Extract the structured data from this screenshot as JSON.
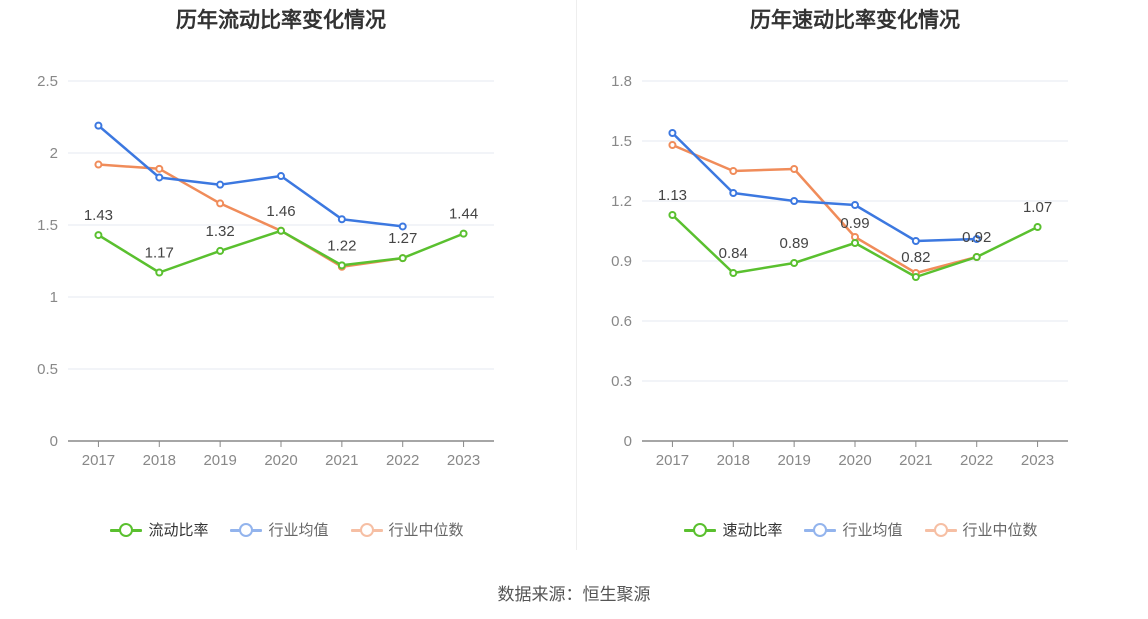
{
  "source_note": "数据来源：恒生聚源",
  "chart_data": [
    {
      "type": "line",
      "title": "历年流动比率变化情况",
      "categories": [
        "2017",
        "2018",
        "2019",
        "2020",
        "2021",
        "2022",
        "2023"
      ],
      "ylim": [
        0,
        2.5
      ],
      "yticks": [
        "0",
        "0.5",
        "1",
        "1.5",
        "2",
        "2.5"
      ],
      "ytick_values": [
        0,
        0.5,
        1,
        1.5,
        2,
        2.5
      ],
      "grid": true,
      "legend_position": "bottom",
      "series": [
        {
          "name": "流动比率",
          "color": "#5ac02f",
          "values": [
            1.43,
            1.17,
            1.32,
            1.46,
            1.22,
            1.27,
            1.44
          ],
          "labels": [
            "1.43",
            "1.17",
            "1.32",
            "1.46",
            "1.22",
            "1.27",
            "1.44"
          ]
        },
        {
          "name": "行业均值",
          "color": "#3c78e0",
          "values": [
            2.19,
            1.83,
            1.78,
            1.84,
            1.54,
            1.49,
            null
          ]
        },
        {
          "name": "行业中位数",
          "color": "#f08c5a",
          "values": [
            1.92,
            1.89,
            1.65,
            1.46,
            1.21,
            1.27,
            null
          ]
        }
      ]
    },
    {
      "type": "line",
      "title": "历年速动比率变化情况",
      "categories": [
        "2017",
        "2018",
        "2019",
        "2020",
        "2021",
        "2022",
        "2023"
      ],
      "ylim": [
        0,
        1.8
      ],
      "yticks": [
        "0",
        "0.3",
        "0.6",
        "0.9",
        "1.2",
        "1.5",
        "1.8"
      ],
      "ytick_values": [
        0,
        0.3,
        0.6,
        0.9,
        1.2,
        1.5,
        1.8
      ],
      "grid": true,
      "legend_position": "bottom",
      "series": [
        {
          "name": "速动比率",
          "color": "#5ac02f",
          "values": [
            1.13,
            0.84,
            0.89,
            0.99,
            0.82,
            0.92,
            1.07
          ],
          "labels": [
            "1.13",
            "0.84",
            "0.89",
            "0.99",
            "0.82",
            "0.92",
            "1.07"
          ]
        },
        {
          "name": "行业均值",
          "color": "#3c78e0",
          "values": [
            1.54,
            1.24,
            1.2,
            1.18,
            1.0,
            1.01,
            null
          ]
        },
        {
          "name": "行业中位数",
          "color": "#f08c5a",
          "values": [
            1.48,
            1.35,
            1.36,
            1.02,
            0.84,
            0.92,
            null
          ]
        }
      ]
    }
  ]
}
